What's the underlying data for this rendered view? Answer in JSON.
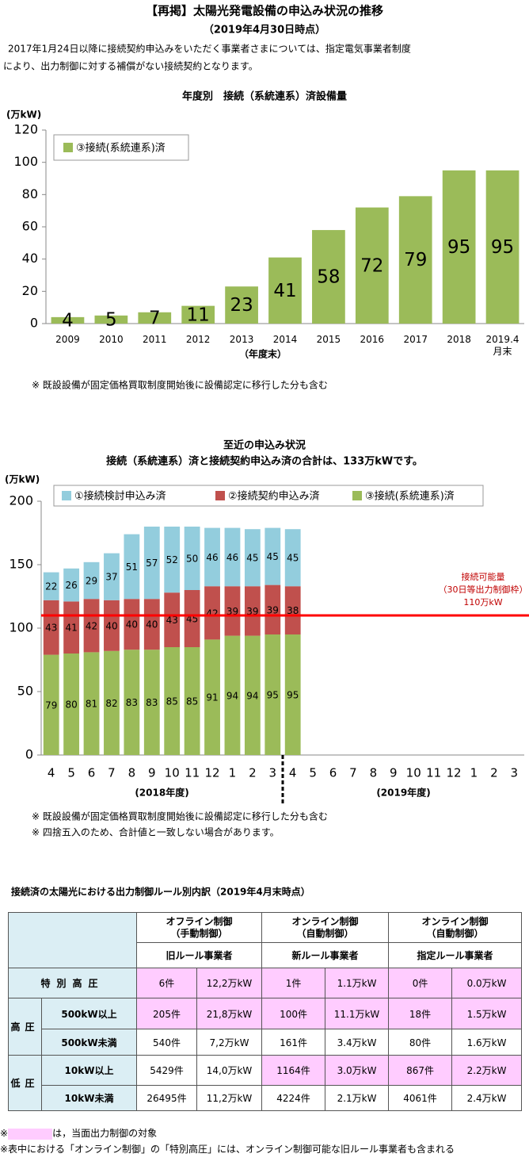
{
  "header": {
    "title": "【再掲】太陽光発電設備の申込み状況の推移",
    "date": "（2019年4月30日時点）",
    "notice": [
      "2017年1月24日以降に接続契約申込みをいただく事業者さまについては、指定電気事業者制度",
      "により、出力制御に対する補償がない接続契約となります。"
    ]
  },
  "chart_data": [
    {
      "type": "bar",
      "title": "年度別　接続（系統連系）済設備量",
      "y_label": "(万kW)",
      "x_note": "（年度末）",
      "note": "※ 既設設備が固定価格買取制度開始後に設備認定に移行した分も含む",
      "categories": [
        "2009",
        "2010",
        "2011",
        "2012",
        "2013",
        "2014",
        "2015",
        "2016",
        "2017",
        "2018",
        "2019.4月末"
      ],
      "series": [
        {
          "name": "③接続(系統連系)済",
          "color": "#9bbb59",
          "values": [
            4,
            5,
            7,
            11,
            23,
            41,
            58,
            72,
            79,
            95,
            95
          ]
        }
      ],
      "ylim": [
        0,
        120
      ],
      "yticks": [
        0,
        20,
        40,
        60,
        80,
        100,
        120
      ],
      "legend": "upper left",
      "data_labels": true
    },
    {
      "type": "stacked_bar",
      "title": "至近の申込み状況",
      "subtitle": "接続（系統連系）済と接続契約申込み済の合計は、133万kWです。",
      "y_label": "(万kW)",
      "categories": [
        "4",
        "5",
        "6",
        "7",
        "8",
        "9",
        "10",
        "11",
        "12",
        "1",
        "2",
        "3",
        "4",
        "5",
        "6",
        "7",
        "8",
        "9",
        "10",
        "11",
        "12",
        "1",
        "2",
        "3"
      ],
      "period_labels": [
        "(2018年度)",
        "(2019年度)"
      ],
      "series": [
        {
          "name": "①接続検討申込み済",
          "color": "#93cddd",
          "values": [
            22,
            26,
            29,
            37,
            51,
            57,
            52,
            50,
            46,
            46,
            45,
            45,
            45,
            null,
            null,
            null,
            null,
            null,
            null,
            null,
            null,
            null,
            null,
            null
          ]
        },
        {
          "name": "②接続契約申込み済",
          "color": "#c0504d",
          "values": [
            43,
            41,
            42,
            40,
            40,
            40,
            43,
            45,
            42,
            39,
            39,
            39,
            38,
            null,
            null,
            null,
            null,
            null,
            null,
            null,
            null,
            null,
            null,
            null
          ]
        },
        {
          "name": "③接続(系統連系)済",
          "color": "#9bbb59",
          "values": [
            79,
            80,
            81,
            82,
            83,
            83,
            85,
            85,
            91,
            94,
            94,
            95,
            95,
            null,
            null,
            null,
            null,
            null,
            null,
            null,
            null,
            null,
            null,
            null
          ]
        }
      ],
      "reference_line": {
        "value": 110,
        "color": "#ff0000",
        "label": [
          "接続可能量",
          "（30日等出力制御枠）",
          "110万kW"
        ]
      },
      "ylim": [
        0,
        200
      ],
      "yticks": [
        0,
        50,
        100,
        150,
        200
      ],
      "legend": "top",
      "data_labels": true,
      "notes": [
        "※ 既設設備が固定価格買取制度開始後に設備認定に移行した分も含む",
        "※ 四捨五入のため、合計値と一致しない場合があります。"
      ]
    }
  ],
  "table": {
    "title": "接続済の太陽光における出力制御ルール別内訳（2019年4月末時点）",
    "header_color": "#dbeef4",
    "highlight_color": "#ffccff",
    "groups": [
      {
        "title": [
          "オフライン制御",
          "（手動制御）"
        ],
        "rule": "旧ルール事業者"
      },
      {
        "title": [
          "オンライン制御",
          "（自動制御）"
        ],
        "rule": "新ルール事業者"
      },
      {
        "title": [
          "オンライン制御",
          "（自動制御）"
        ],
        "rule": "指定ルール事業者"
      }
    ],
    "rows": [
      {
        "group": "特別高圧",
        "cells": [
          "6件",
          "12,2万kW",
          "1件",
          "1.1万kW",
          "0件",
          "0.0万kW"
        ],
        "highlight": [
          true,
          true,
          true,
          true,
          true,
          true
        ]
      },
      {
        "group": "高圧",
        "sub": "500kW以上",
        "cells": [
          "205件",
          "21,8万kW",
          "100件",
          "11.1万kW",
          "18件",
          "1.5万kW"
        ],
        "highlight": [
          true,
          true,
          true,
          true,
          true,
          true
        ]
      },
      {
        "sub": "500kW未満",
        "cells": [
          "540件",
          "7,2万kW",
          "161件",
          "3.4万kW",
          "80件",
          "1.6万kW"
        ],
        "highlight": [
          false,
          false,
          false,
          false,
          false,
          false
        ]
      },
      {
        "group": "低圧",
        "sub": "10kW以上",
        "cells": [
          "5429件",
          "14,0万kW",
          "1164件",
          "3.0万kW",
          "867件",
          "2.2万kW"
        ],
        "highlight": [
          false,
          false,
          true,
          true,
          true,
          true
        ]
      },
      {
        "sub": "10kW未満",
        "cells": [
          "26495件",
          "11,2万kW",
          "4224件",
          "2.1万kW",
          "4061件",
          "2.4万kW"
        ],
        "highlight": [
          false,
          false,
          false,
          false,
          false,
          false
        ]
      }
    ],
    "notes": [
      {
        "mark": "※",
        "text": "は，当面出力制御の対象"
      },
      {
        "text": "※表中における「オンライン制御」の「特別高圧」には、オンライン制御可能な旧ルール事業者も含まれる"
      }
    ]
  }
}
